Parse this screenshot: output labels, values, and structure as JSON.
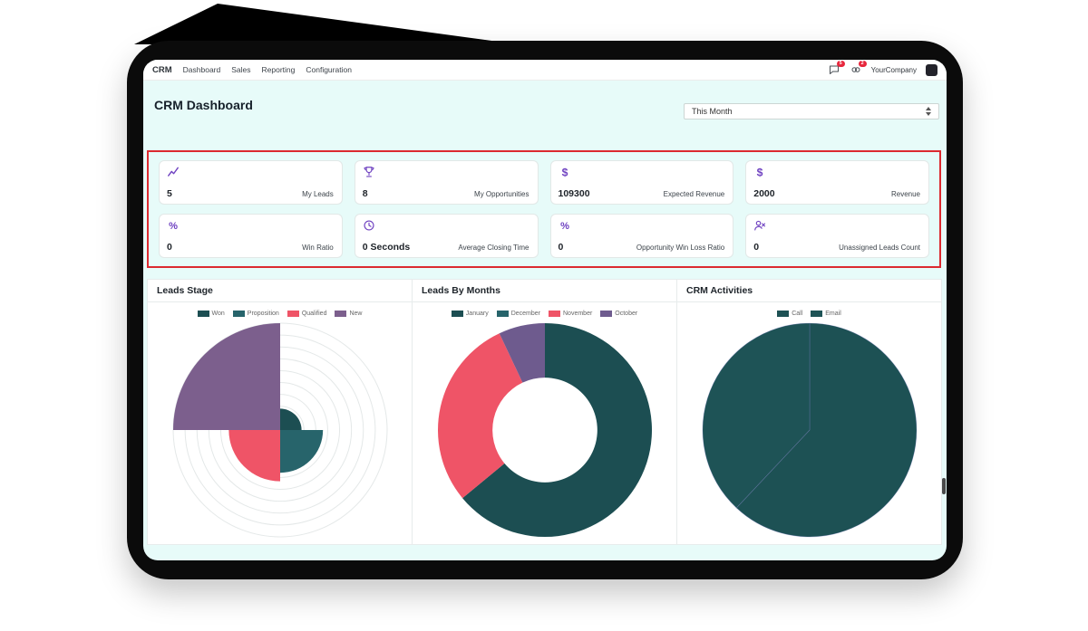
{
  "nav": {
    "brand": "CRM",
    "items": [
      {
        "label": "Dashboard"
      },
      {
        "label": "Sales"
      },
      {
        "label": "Reporting"
      },
      {
        "label": "Configuration"
      }
    ],
    "systray": {
      "messages_badge": "5",
      "activities_badge": "2",
      "company": "YourCompany"
    }
  },
  "header": {
    "title": "CRM Dashboard",
    "period": {
      "value": "This Month"
    }
  },
  "kpis": [
    {
      "icon": "line-chart-icon",
      "value": "5",
      "label": "My Leads"
    },
    {
      "icon": "trophy-icon",
      "value": "8",
      "label": "My Opportunities"
    },
    {
      "icon": "dollar-icon",
      "value": "109300",
      "label": "Expected Revenue"
    },
    {
      "icon": "dollar-icon",
      "value": "2000",
      "label": "Revenue"
    },
    {
      "icon": "percent-icon",
      "value": "0",
      "label": "Win Ratio"
    },
    {
      "icon": "clock-icon",
      "value": "0 Seconds",
      "label": "Average Closing Time"
    },
    {
      "icon": "percent-icon",
      "value": "0",
      "label": "Opportunity Win Loss Ratio"
    },
    {
      "icon": "user-x-icon",
      "value": "0",
      "label": "Unassigned Leads Count"
    }
  ],
  "colors": {
    "kpi_icon": "#6f42c1",
    "alert_border": "#dc2a30",
    "badge": "#e7273d",
    "screen_bg": "#e7fbf9",
    "panel_bg": "#ffffff"
  },
  "chart_data": [
    {
      "type": "polarArea",
      "title": "Leads Stage",
      "max": 5,
      "grid": true,
      "series": [
        {
          "name": "Won",
          "value": 1,
          "color": "#1c4e52"
        },
        {
          "name": "Proposition",
          "value": 2,
          "color": "#27646b"
        },
        {
          "name": "Qualified",
          "value": 2.4,
          "color": "#ef5467"
        },
        {
          "name": "New",
          "value": 5,
          "color": "#7c5f8d"
        }
      ]
    },
    {
      "type": "doughnut",
      "title": "Leads By Months",
      "values_unit": "percent_estimated",
      "series": [
        {
          "name": "January",
          "value": 64,
          "color": "#1c4e52"
        },
        {
          "name": "December",
          "value": 0,
          "color": "#27646b"
        },
        {
          "name": "November",
          "value": 29,
          "color": "#ef5467"
        },
        {
          "name": "October",
          "value": 7,
          "color": "#6e5b8e"
        }
      ]
    },
    {
      "type": "pie",
      "title": "CRM Activities",
      "values_unit": "percent_estimated",
      "series": [
        {
          "name": "Call",
          "value": 62,
          "color": "#1d5154"
        },
        {
          "name": "Email",
          "value": 38,
          "color": "#1e5356"
        }
      ]
    }
  ]
}
